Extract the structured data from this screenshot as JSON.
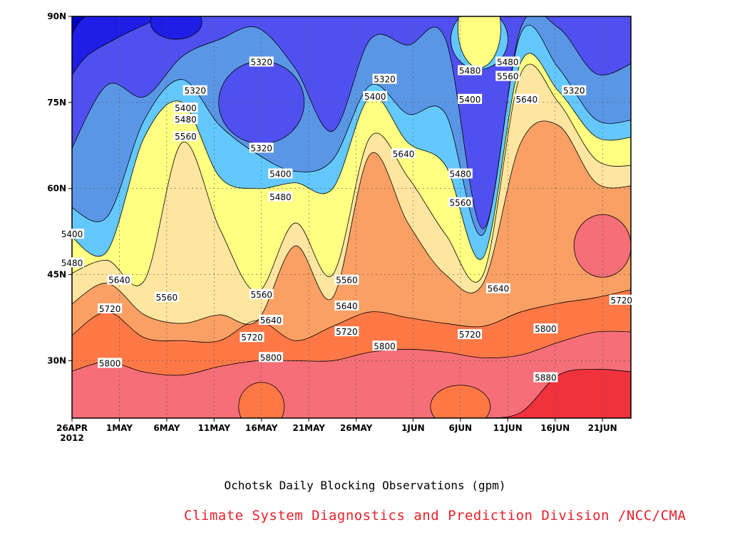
{
  "title": "Ochotsk Daily Blocking Observations (gpm)",
  "credit": "Climate System Diagnostics and Prediction Division /NCC/CMA",
  "chart_data": {
    "type": "heatmap",
    "subtype": "filled-contour (time-latitude section)",
    "x_ticks": [
      "26APR",
      "1MAY",
      "6MAY",
      "11MAY",
      "16MAY",
      "21MAY",
      "26MAY",
      "1JUN",
      "6JUN",
      "11JUN",
      "16JUN",
      "21JUN"
    ],
    "x_year_label": "2012",
    "x_range": [
      "2012-04-26",
      "2012-06-24"
    ],
    "y_ticks": [
      "30N",
      "45N",
      "60N",
      "75N",
      "90N"
    ],
    "y_range": [
      20,
      90
    ],
    "grid": true,
    "levels": [
      5240,
      5320,
      5400,
      5480,
      5560,
      5640,
      5720,
      5800,
      5880
    ],
    "level_colors": [
      "#0000c8",
      "#1e1ee6",
      "#5050f0",
      "#5a96e6",
      "#64c8ff",
      "#ffff82",
      "#ffe6a0",
      "#faa064",
      "#ff7846",
      "#f56e78",
      "#f0323c"
    ],
    "boundaries": [
      {
        "level": 5880,
        "lat": [
          20,
          20,
          20,
          20,
          20,
          20,
          20,
          20,
          20,
          20,
          20,
          20,
          21,
          27.5,
          28.5,
          28
        ]
      },
      {
        "level": 5800,
        "lat": [
          28,
          29.8,
          28,
          27.5,
          29,
          30,
          30,
          30,
          31.5,
          32,
          31.5,
          30.5,
          31,
          33.2,
          35,
          35
        ]
      },
      {
        "level": 5720,
        "lat": [
          34,
          38.5,
          34,
          33.5,
          33.5,
          37,
          33.5,
          36,
          38.5,
          37.5,
          36.5,
          36,
          38.5,
          40,
          41,
          42.5
        ]
      },
      {
        "level": 5640,
        "lat": [
          39.5,
          43.5,
          38,
          36.5,
          38,
          37,
          50,
          41,
          66,
          54,
          45,
          43.5,
          68,
          71,
          61,
          60.5
        ]
      },
      {
        "level": 5560,
        "lat": [
          45,
          47.5,
          44,
          68,
          53,
          42,
          54,
          45,
          69,
          62,
          52,
          45,
          80,
          75,
          65,
          64
        ]
      },
      {
        "level": 5480,
        "lat": [
          52,
          49,
          69,
          75,
          62,
          60,
          61,
          60,
          76,
          68,
          64,
          48,
          82,
          77,
          69,
          69
        ]
      },
      {
        "level": 5400,
        "lat": [
          57,
          55,
          72,
          79,
          71,
          66,
          63,
          65,
          78,
          73,
          73,
          52,
          87,
          81,
          72,
          72
        ]
      },
      {
        "level": 5320,
        "lat": [
          66,
          78,
          76,
          83,
          86,
          88,
          81,
          70,
          86,
          85,
          86,
          53,
          88,
          88,
          80,
          82
        ]
      }
    ],
    "closed_regions": [
      {
        "level": 5320,
        "date": "16MAY",
        "lat": 75
      },
      {
        "level": 5800,
        "date": "16MAY",
        "lat": 22
      },
      {
        "level": 5800,
        "date": "6JUN",
        "lat": 22
      },
      {
        "level": 5880,
        "date": "21JUN",
        "lat": 50
      },
      {
        "level": 5480,
        "date": "8JUN",
        "lat": 86
      },
      {
        "level": 5560,
        "date": "8JUN",
        "lat": 88
      }
    ],
    "contour_labels": [
      {
        "text": "5320",
        "date": "16MAY",
        "lat": 82
      },
      {
        "text": "5320",
        "date": "9MAY",
        "lat": 77
      },
      {
        "text": "5320",
        "date": "16MAY",
        "lat": 67
      },
      {
        "text": "5320",
        "date": "29MAY",
        "lat": 79
      },
      {
        "text": "5320",
        "date": "18JUN",
        "lat": 77
      },
      {
        "text": "5400",
        "date": "8MAY",
        "lat": 74
      },
      {
        "text": "5400",
        "date": "18MAY",
        "lat": 62.5
      },
      {
        "text": "5400",
        "date": "28MAY",
        "lat": 76
      },
      {
        "text": "5400",
        "date": "7JUN",
        "lat": 75.5
      },
      {
        "text": "5400",
        "date": "26APR",
        "lat": 52
      },
      {
        "text": "5480",
        "date": "8MAY",
        "lat": 72
      },
      {
        "text": "5480",
        "date": "18MAY",
        "lat": 58.5
      },
      {
        "text": "5480",
        "date": "7JUN",
        "lat": 80.5
      },
      {
        "text": "5480",
        "date": "6JUN",
        "lat": 62.5
      },
      {
        "text": "5480",
        "date": "11JUN",
        "lat": 82
      },
      {
        "text": "5480",
        "date": "26APR",
        "lat": 47
      },
      {
        "text": "5560",
        "date": "8MAY",
        "lat": 69
      },
      {
        "text": "5560",
        "date": "11JUN",
        "lat": 79.5
      },
      {
        "text": "5560",
        "date": "6JUN",
        "lat": 57.5
      },
      {
        "text": "5560",
        "date": "6MAY",
        "lat": 41
      },
      {
        "text": "5560",
        "date": "16MAY",
        "lat": 41.5
      },
      {
        "text": "5560",
        "date": "25MAY",
        "lat": 44
      },
      {
        "text": "5640",
        "date": "1MAY",
        "lat": 44
      },
      {
        "text": "5640",
        "date": "31MAY",
        "lat": 66
      },
      {
        "text": "5640",
        "date": "13JUN",
        "lat": 75.5
      },
      {
        "text": "5640",
        "date": "17MAY",
        "lat": 37
      },
      {
        "text": "5640",
        "date": "25MAY",
        "lat": 39.5
      },
      {
        "text": "5640",
        "date": "10JUN",
        "lat": 42.5
      },
      {
        "text": "5720",
        "date": "30APR",
        "lat": 39
      },
      {
        "text": "5720",
        "date": "15MAY",
        "lat": 34
      },
      {
        "text": "5720",
        "date": "25MAY",
        "lat": 35
      },
      {
        "text": "5720",
        "date": "7JUN",
        "lat": 34.5
      },
      {
        "text": "5720",
        "date": "23JUN",
        "lat": 40.5
      },
      {
        "text": "5800",
        "date": "30APR",
        "lat": 29.5
      },
      {
        "text": "5800",
        "date": "17MAY",
        "lat": 30.5
      },
      {
        "text": "5800",
        "date": "29MAY",
        "lat": 32.5
      },
      {
        "text": "5800",
        "date": "15JUN",
        "lat": 35.5
      },
      {
        "text": "5880",
        "date": "15JUN",
        "lat": 27
      }
    ]
  }
}
